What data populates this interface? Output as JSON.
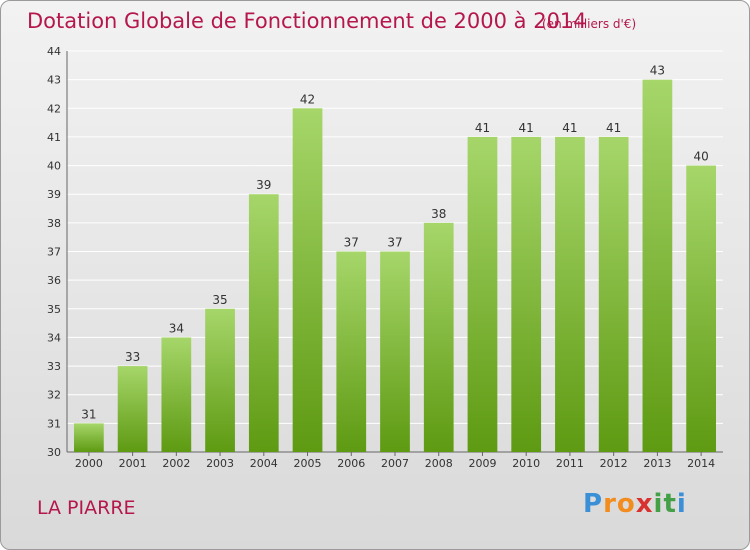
{
  "title": "Dotation Globale de Fonctionnement de 2000 à 2014",
  "subtitle": "(en milliers d'€)",
  "commune": "LA PIARRE",
  "logo": {
    "letters": [
      "P",
      "r",
      "o",
      "x",
      "i",
      "t",
      "i"
    ],
    "colors": [
      "#3a8fd6",
      "#f28c1e",
      "#f28c1e",
      "#d93030",
      "#43a047",
      "#43a047",
      "#3a8fd6"
    ]
  },
  "colors": {
    "title": "#b5174d",
    "bar_top": "#a6d66a",
    "bar_bottom": "#5e9a12",
    "grid": "#ffffff"
  },
  "chart_data": {
    "type": "bar",
    "title": "Dotation Globale de Fonctionnement de 2000 à 2014",
    "subtitle": "(en milliers d'€)",
    "categories": [
      "2000",
      "2001",
      "2002",
      "2003",
      "2004",
      "2005",
      "2006",
      "2007",
      "2008",
      "2009",
      "2010",
      "2011",
      "2012",
      "2013",
      "2014"
    ],
    "values": [
      31,
      33,
      34,
      35,
      39,
      42,
      37,
      37,
      38,
      41,
      41,
      41,
      41,
      43,
      40
    ],
    "ylim": [
      30,
      44
    ],
    "yticks": [
      30,
      31,
      32,
      33,
      34,
      35,
      36,
      37,
      38,
      39,
      40,
      41,
      42,
      43,
      44
    ],
    "grid": true,
    "data_labels": true
  }
}
